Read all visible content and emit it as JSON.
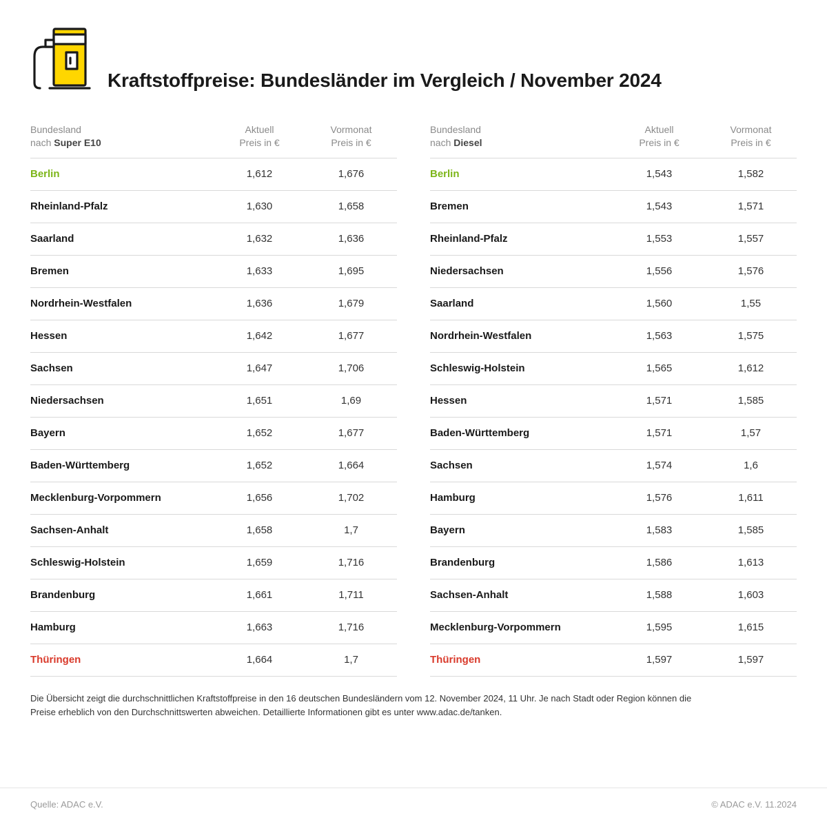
{
  "title": "Kraftstoffpreise: Bundesländer im Vergleich / November 2024",
  "icon_colors": {
    "fill": "#ffd600",
    "stroke": "#1a1a1a"
  },
  "header_labels": {
    "state_line1": "Bundesland",
    "state_prefix": "nach ",
    "current_line1": "Aktuell",
    "current_line2": "Preis in €",
    "prev_line1": "Vormonat",
    "prev_line2": "Preis in €"
  },
  "highlight_colors": {
    "low": "#7cb518",
    "high": "#d93a2b"
  },
  "tables": [
    {
      "fuel": "Super E10",
      "rows": [
        {
          "state": "Berlin",
          "current": "1,612",
          "prev": "1,676",
          "highlight": "low"
        },
        {
          "state": "Rheinland-Pfalz",
          "current": "1,630",
          "prev": "1,658"
        },
        {
          "state": "Saarland",
          "current": "1,632",
          "prev": "1,636"
        },
        {
          "state": "Bremen",
          "current": "1,633",
          "prev": "1,695"
        },
        {
          "state": "Nordrhein-Westfalen",
          "current": "1,636",
          "prev": "1,679"
        },
        {
          "state": "Hessen",
          "current": "1,642",
          "prev": "1,677"
        },
        {
          "state": "Sachsen",
          "current": "1,647",
          "prev": "1,706"
        },
        {
          "state": "Niedersachsen",
          "current": "1,651",
          "prev": "1,69"
        },
        {
          "state": "Bayern",
          "current": "1,652",
          "prev": "1,677"
        },
        {
          "state": "Baden-Württemberg",
          "current": "1,652",
          "prev": "1,664"
        },
        {
          "state": "Mecklenburg-Vorpommern",
          "current": "1,656",
          "prev": "1,702"
        },
        {
          "state": "Sachsen-Anhalt",
          "current": "1,658",
          "prev": "1,7"
        },
        {
          "state": "Schleswig-Holstein",
          "current": "1,659",
          "prev": "1,716"
        },
        {
          "state": "Brandenburg",
          "current": "1,661",
          "prev": "1,711"
        },
        {
          "state": "Hamburg",
          "current": "1,663",
          "prev": "1,716"
        },
        {
          "state": "Thüringen",
          "current": "1,664",
          "prev": "1,7",
          "highlight": "high"
        }
      ]
    },
    {
      "fuel": "Diesel",
      "rows": [
        {
          "state": "Berlin",
          "current": "1,543",
          "prev": "1,582",
          "highlight": "low"
        },
        {
          "state": "Bremen",
          "current": "1,543",
          "prev": "1,571"
        },
        {
          "state": "Rheinland-Pfalz",
          "current": "1,553",
          "prev": "1,557"
        },
        {
          "state": "Niedersachsen",
          "current": "1,556",
          "prev": "1,576"
        },
        {
          "state": "Saarland",
          "current": "1,560",
          "prev": "1,55"
        },
        {
          "state": "Nordrhein-Westfalen",
          "current": "1,563",
          "prev": "1,575"
        },
        {
          "state": "Schleswig-Holstein",
          "current": "1,565",
          "prev": "1,612"
        },
        {
          "state": "Hessen",
          "current": "1,571",
          "prev": "1,585"
        },
        {
          "state": "Baden-Württemberg",
          "current": "1,571",
          "prev": "1,57"
        },
        {
          "state": "Sachsen",
          "current": "1,574",
          "prev": "1,6"
        },
        {
          "state": "Hamburg",
          "current": "1,576",
          "prev": "1,611"
        },
        {
          "state": "Bayern",
          "current": "1,583",
          "prev": "1,585"
        },
        {
          "state": "Brandenburg",
          "current": "1,586",
          "prev": "1,613"
        },
        {
          "state": "Sachsen-Anhalt",
          "current": "1,588",
          "prev": "1,603"
        },
        {
          "state": "Mecklenburg-Vorpommern",
          "current": "1,595",
          "prev": "1,615"
        },
        {
          "state": "Thüringen",
          "current": "1,597",
          "prev": "1,597",
          "highlight": "high"
        }
      ]
    }
  ],
  "footnote": "Die Übersicht zeigt die durchschnittlichen Kraftstoffpreise in den 16 deutschen Bundesländern vom 12. November 2024, 11 Uhr. Je nach Stadt oder Region können die Preise erheblich von den Durchschnittswerten abweichen. Detaillierte Informationen gibt es unter www.adac.de/tanken.",
  "footer": {
    "source": "Quelle: ADAC e.V.",
    "copyright": "© ADAC e.V. 11.2024"
  }
}
